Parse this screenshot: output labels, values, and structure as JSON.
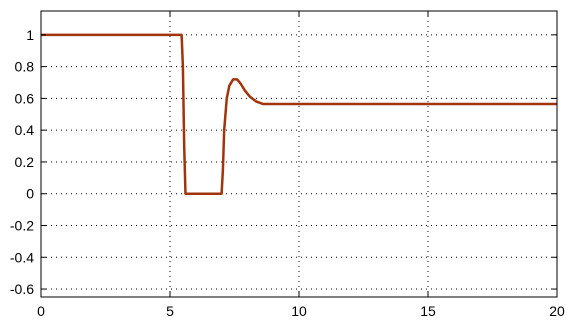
{
  "chart_data": {
    "type": "line",
    "title": "",
    "xlabel": "",
    "ylabel": "",
    "xlim": [
      0,
      20
    ],
    "ylim": [
      -0.65,
      1.15
    ],
    "grid": true,
    "x_ticks": [
      0,
      5,
      10,
      15,
      20
    ],
    "y_ticks": [
      1,
      0.8,
      0.6,
      0.4,
      0.2,
      0,
      -0.2,
      -0.4,
      -0.6
    ],
    "x_tick_labels": [
      "0",
      "5",
      "10",
      "15",
      "20"
    ],
    "y_tick_labels": [
      "1",
      "0.8",
      "0.6",
      "0.4",
      "0.2",
      "0",
      "-0.2",
      "-0.4",
      "-0.6"
    ],
    "series": [
      {
        "color": "#a0340c",
        "x": [
          0,
          5.45,
          5.5,
          5.55,
          5.6,
          7.0,
          7.05,
          7.1,
          7.2,
          7.3,
          7.45,
          7.6,
          7.75,
          7.9,
          8.1,
          8.35,
          8.6,
          9.0,
          10,
          15,
          20
        ],
        "y": [
          1,
          1,
          0.8,
          0.3,
          0,
          0,
          0.15,
          0.4,
          0.6,
          0.68,
          0.72,
          0.72,
          0.69,
          0.65,
          0.61,
          0.58,
          0.565,
          0.565,
          0.565,
          0.565,
          0.565
        ]
      }
    ]
  }
}
